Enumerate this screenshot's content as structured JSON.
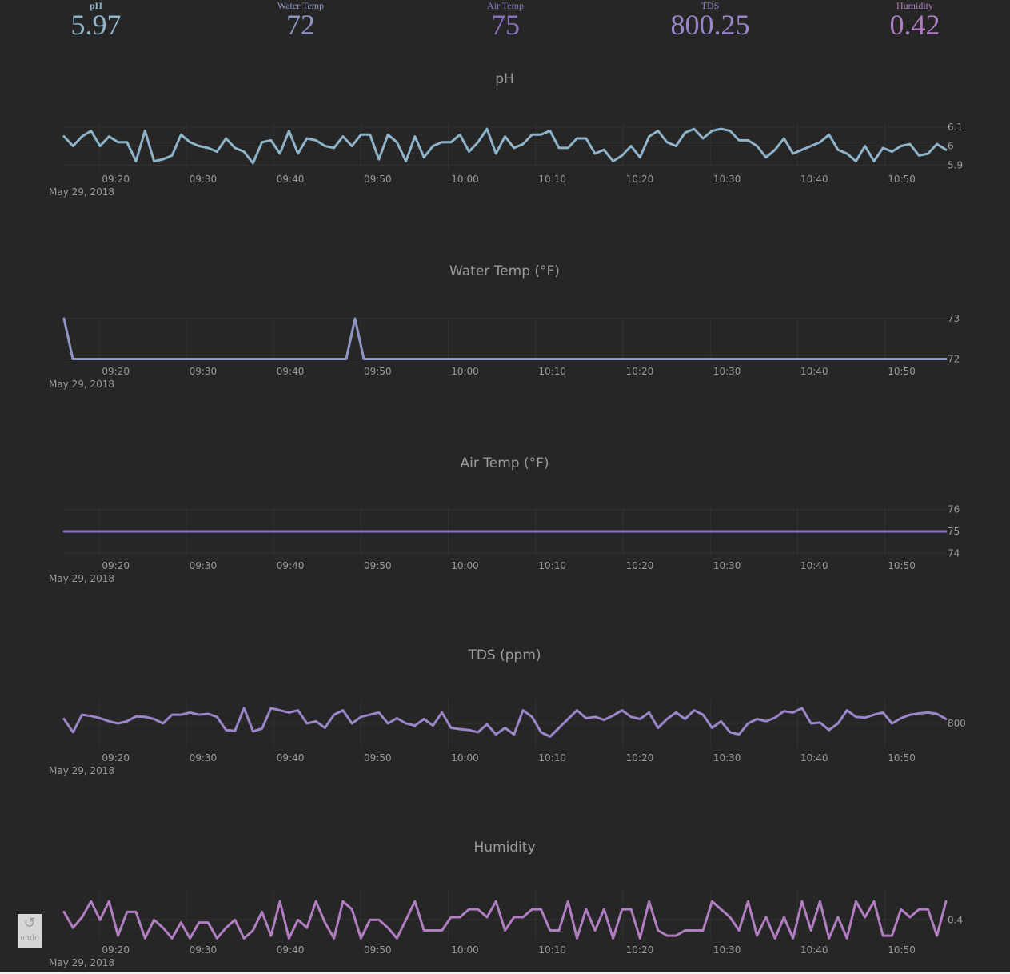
{
  "stats": [
    {
      "label": "pH",
      "value": "5.97",
      "color": "#8fb3c9"
    },
    {
      "label": "Water Temp",
      "value": "72",
      "color": "#8e97c4"
    },
    {
      "label": "Air Temp",
      "value": "75",
      "color": "#8a72bf"
    },
    {
      "label": "TDS",
      "value": "800.25",
      "color": "#9b86c9"
    },
    {
      "label": "Humidity",
      "value": "0.42",
      "color": "#b17fc1"
    }
  ],
  "undo": {
    "label": "undo",
    "icon": "undo-icon"
  },
  "chart_data": [
    {
      "type": "line",
      "title": "pH",
      "color": "#8fb3c9",
      "x_start": "09:16",
      "x_end": "10:57",
      "xticks": [
        "09:20",
        "09:30",
        "09:40",
        "09:50",
        "10:00",
        "10:10",
        "10:20",
        "10:30",
        "10:40",
        "10:50"
      ],
      "date_label": "May 29, 2018",
      "ylim": [
        5.88,
        6.12
      ],
      "yticks": [
        {
          "v": 6.1,
          "t": "6.1"
        },
        {
          "v": 6.0,
          "t": "6"
        },
        {
          "v": 5.9,
          "t": "5.9"
        }
      ],
      "values": [
        6.05,
        6.0,
        6.05,
        6.08,
        6.0,
        6.05,
        6.02,
        6.02,
        5.92,
        6.08,
        5.92,
        5.93,
        5.95,
        6.06,
        6.02,
        6.0,
        5.99,
        5.97,
        6.04,
        5.99,
        5.97,
        5.91,
        6.02,
        6.03,
        5.96,
        6.08,
        5.96,
        6.04,
        6.03,
        6.0,
        5.99,
        6.05,
        6.0,
        6.06,
        6.06,
        5.93,
        6.06,
        6.02,
        5.92,
        6.05,
        5.94,
        6.0,
        6.02,
        6.02,
        6.06,
        5.97,
        6.02,
        6.09,
        5.96,
        6.05,
        5.99,
        6.01,
        6.06,
        6.06,
        6.08,
        5.99,
        5.99,
        6.04,
        6.04,
        5.96,
        5.98,
        5.92,
        5.95,
        6.0,
        5.94,
        6.05,
        6.08,
        6.02,
        6.0,
        6.07,
        6.09,
        6.04,
        6.08,
        6.09,
        6.08,
        6.03,
        6.03,
        6.0,
        5.94,
        5.98,
        6.04,
        5.96,
        5.98,
        6.0,
        6.02,
        6.06,
        5.98,
        5.96,
        5.92,
        6.0,
        5.92,
        5.99,
        5.97,
        6.0,
        6.01,
        5.95,
        5.96,
        6.01,
        5.98
      ]
    },
    {
      "type": "line",
      "title": "Water Temp (°F)",
      "color": "#8e97c4",
      "x_start": "09:16",
      "x_end": "10:57",
      "xticks": [
        "09:20",
        "09:30",
        "09:40",
        "09:50",
        "10:00",
        "10:10",
        "10:20",
        "10:30",
        "10:40",
        "10:50"
      ],
      "date_label": "May 29, 2018",
      "ylim": [
        71.95,
        73.0
      ],
      "yticks": [
        {
          "v": 73,
          "t": "73"
        },
        {
          "v": 72,
          "t": "72"
        }
      ],
      "values": [
        73,
        72,
        72,
        72,
        72,
        72,
        72,
        72,
        72,
        72,
        72,
        72,
        72,
        72,
        72,
        72,
        72,
        72,
        72,
        72,
        72,
        72,
        72,
        72,
        72,
        72,
        72,
        72,
        72,
        72,
        72,
        72,
        72,
        73,
        72,
        72,
        72,
        72,
        72,
        72,
        72,
        72,
        72,
        72,
        72,
        72,
        72,
        72,
        72,
        72,
        72,
        72,
        72,
        72,
        72,
        72,
        72,
        72,
        72,
        72,
        72,
        72,
        72,
        72,
        72,
        72,
        72,
        72,
        72,
        72,
        72,
        72,
        72,
        72,
        72,
        72,
        72,
        72,
        72,
        72,
        72,
        72,
        72,
        72,
        72,
        72,
        72,
        72,
        72,
        72,
        72,
        72,
        72,
        72,
        72,
        72,
        72,
        72,
        72,
        72,
        72
      ]
    },
    {
      "type": "line",
      "title": "Air Temp (°F)",
      "color": "#8a72bf",
      "x_start": "09:16",
      "x_end": "10:57",
      "xticks": [
        "09:20",
        "09:30",
        "09:40",
        "09:50",
        "10:00",
        "10:10",
        "10:20",
        "10:30",
        "10:40",
        "10:50"
      ],
      "date_label": "May 29, 2018",
      "ylim": [
        73.9,
        76.1
      ],
      "yticks": [
        {
          "v": 76,
          "t": "76"
        },
        {
          "v": 75,
          "t": "75"
        },
        {
          "v": 74,
          "t": "74"
        }
      ],
      "values": [
        75,
        75
      ]
    },
    {
      "type": "line",
      "title": "TDS (ppm)",
      "color": "#9b86c9",
      "x_start": "09:16",
      "x_end": "10:57",
      "xticks": [
        "09:20",
        "09:30",
        "09:40",
        "09:50",
        "10:00",
        "10:10",
        "10:20",
        "10:30",
        "10:40",
        "10:50"
      ],
      "date_label": "May 29, 2018",
      "ylim": [
        799.45,
        800.55
      ],
      "yticks": [
        {
          "v": 800,
          "t": "800"
        }
      ],
      "values": [
        800.1,
        799.8,
        800.2,
        800.17,
        800.12,
        800.05,
        800.0,
        800.05,
        800.16,
        800.15,
        800.1,
        800.0,
        800.2,
        800.2,
        800.25,
        800.2,
        800.22,
        800.15,
        799.85,
        799.83,
        800.35,
        799.82,
        799.88,
        800.35,
        800.3,
        800.25,
        800.3,
        800.0,
        800.05,
        799.9,
        800.2,
        800.3,
        800.0,
        800.15,
        800.2,
        800.25,
        800.0,
        800.12,
        800.0,
        799.95,
        800.1,
        799.95,
        800.25,
        799.9,
        799.87,
        799.85,
        799.8,
        799.98,
        799.75,
        799.9,
        799.75,
        800.3,
        800.15,
        799.8,
        799.7,
        799.9,
        800.1,
        800.3,
        800.12,
        800.15,
        800.08,
        800.18,
        800.3,
        800.15,
        800.1,
        800.25,
        799.9,
        800.1,
        800.25,
        800.1,
        800.3,
        800.2,
        799.9,
        800.05,
        799.8,
        799.75,
        800.0,
        800.1,
        800.05,
        800.13,
        800.28,
        800.25,
        800.35,
        800.0,
        800.02,
        799.85,
        800.0,
        800.3,
        800.15,
        800.13,
        800.2,
        800.25,
        800.0,
        800.12,
        800.2,
        800.23,
        800.25,
        800.22,
        800.1
      ]
    },
    {
      "type": "line",
      "title": "Humidity",
      "color": "#b17fc1",
      "x_start": "09:16",
      "x_end": "10:57",
      "xticks": [
        "09:20",
        "09:30",
        "09:40",
        "09:50",
        "10:00",
        "10:10",
        "10:20",
        "10:30",
        "10:40",
        "10:50"
      ],
      "date_label": "May 29, 2018",
      "ylim": [
        0.325,
        0.51
      ],
      "yticks": [
        {
          "v": 0.4,
          "t": "0.4"
        }
      ],
      "values": [
        0.43,
        0.37,
        0.41,
        0.47,
        0.4,
        0.47,
        0.34,
        0.43,
        0.43,
        0.33,
        0.4,
        0.37,
        0.33,
        0.39,
        0.33,
        0.39,
        0.39,
        0.33,
        0.37,
        0.4,
        0.33,
        0.36,
        0.43,
        0.34,
        0.47,
        0.33,
        0.4,
        0.37,
        0.47,
        0.39,
        0.33,
        0.47,
        0.44,
        0.33,
        0.4,
        0.4,
        0.37,
        0.33,
        0.4,
        0.47,
        0.36,
        0.36,
        0.36,
        0.41,
        0.41,
        0.44,
        0.44,
        0.41,
        0.47,
        0.36,
        0.41,
        0.41,
        0.44,
        0.44,
        0.36,
        0.36,
        0.47,
        0.33,
        0.44,
        0.36,
        0.44,
        0.33,
        0.44,
        0.44,
        0.33,
        0.47,
        0.36,
        0.34,
        0.34,
        0.36,
        0.36,
        0.36,
        0.47,
        0.44,
        0.41,
        0.36,
        0.47,
        0.34,
        0.41,
        0.33,
        0.41,
        0.33,
        0.47,
        0.36,
        0.47,
        0.33,
        0.41,
        0.33,
        0.47,
        0.41,
        0.47,
        0.34,
        0.34,
        0.44,
        0.41,
        0.44,
        0.44,
        0.34,
        0.47
      ]
    }
  ]
}
